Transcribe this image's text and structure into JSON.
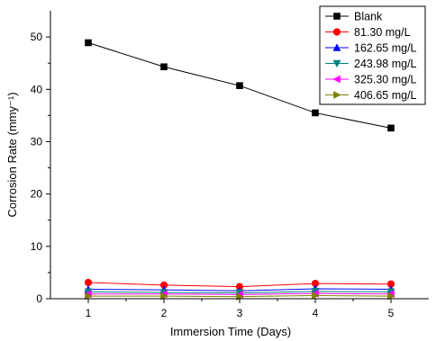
{
  "chart_data": {
    "type": "line",
    "xlabel": "Immersion Time (Days)",
    "ylabel": "Corrosion Rate (mmy⁻¹)",
    "x": [
      1,
      2,
      3,
      4,
      5
    ],
    "xlim": [
      0.5,
      5.5
    ],
    "ylim": [
      0,
      55
    ],
    "xticks": [
      "1",
      "2",
      "3",
      "4",
      "5"
    ],
    "yticks": [
      "0",
      "10",
      "20",
      "30",
      "40",
      "50"
    ],
    "grid": false,
    "legend_position": "top-right",
    "series": [
      {
        "name": "Blank",
        "color": "#000000",
        "marker": "square",
        "values": [
          48.9,
          44.3,
          40.7,
          35.5,
          32.6
        ]
      },
      {
        "name": "81.30 mg/L",
        "color": "#ff0000",
        "marker": "circle",
        "values": [
          3.1,
          2.6,
          2.3,
          2.9,
          2.8
        ]
      },
      {
        "name": "162.65 mg/L",
        "color": "#0000ff",
        "marker": "triangle-up",
        "values": [
          1.8,
          1.7,
          1.5,
          1.9,
          1.8
        ]
      },
      {
        "name": "243.98 mg/L",
        "color": "#008080",
        "marker": "triangle-down",
        "values": [
          1.3,
          1.2,
          1.1,
          1.4,
          1.3
        ]
      },
      {
        "name": "325.30 mg/L",
        "color": "#ff00ff",
        "marker": "triangle-left",
        "values": [
          0.9,
          0.9,
          0.8,
          1.0,
          0.9
        ]
      },
      {
        "name": "406.65 mg/L",
        "color": "#808000",
        "marker": "triangle-right",
        "values": [
          0.5,
          0.5,
          0.4,
          0.6,
          0.5
        ]
      }
    ]
  }
}
